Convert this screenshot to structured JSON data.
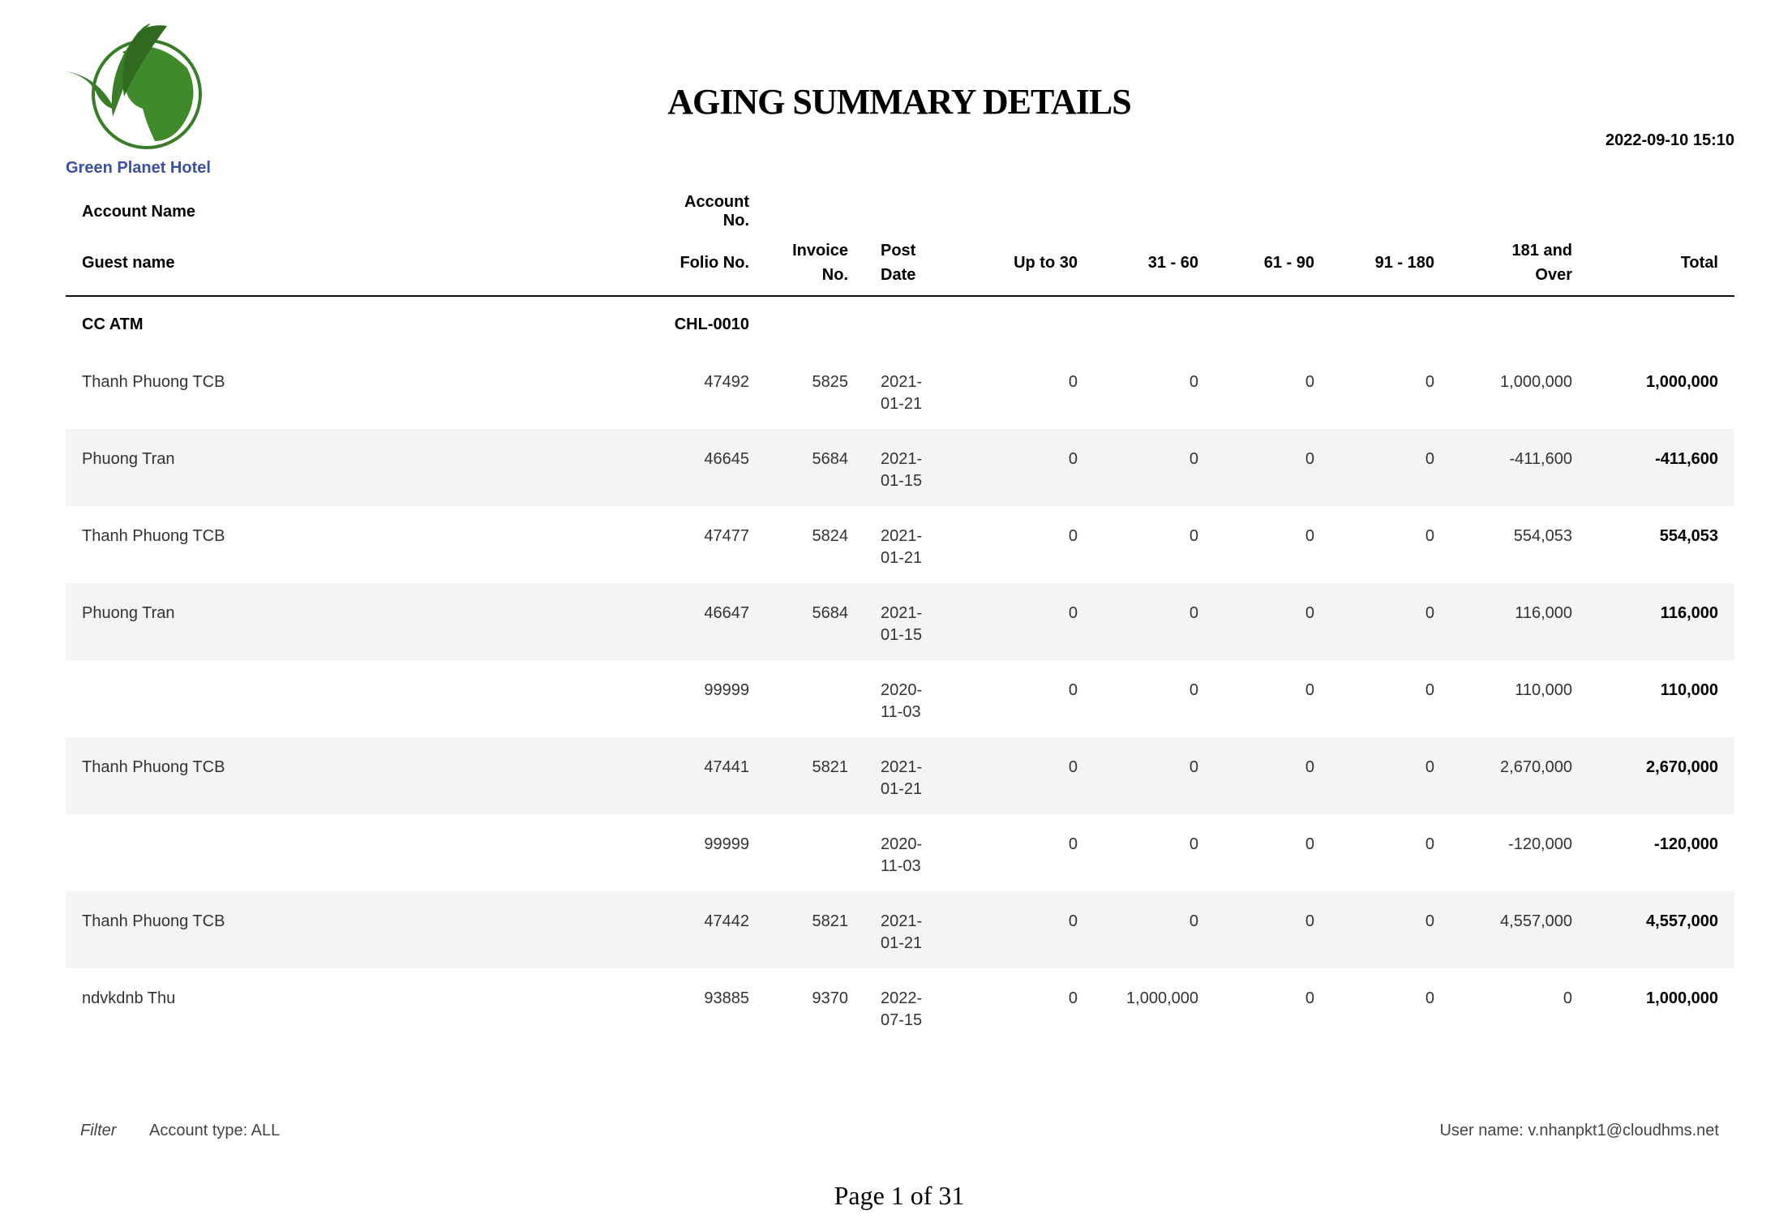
{
  "header": {
    "hotel_name": "Green Planet Hotel",
    "title": "AGING SUMMARY DETAILS",
    "printed_at": "2022-09-10 15:10",
    "brand_color": "#3d4fa0",
    "logo_color": "#3a7d28"
  },
  "columns": {
    "account_name": "Account Name",
    "account_no": "Account No.",
    "guest_name": "Guest name",
    "folio_no": "Folio No.",
    "invoice_no_1": "Invoice",
    "invoice_no_2": "No.",
    "post_date_1": "Post",
    "post_date_2": "Date",
    "up_to_30": "Up to 30",
    "d31_60": "31 - 60",
    "d61_90": "61 - 90",
    "d91_180": "91 - 180",
    "d181_1": "181 and",
    "d181_2": "Over",
    "total": "Total"
  },
  "account": {
    "name": "CC ATM",
    "number": "CHL-0010"
  },
  "rows": [
    {
      "guest": "Thanh Phuong TCB",
      "folio": "47492",
      "invoice": "5825",
      "date1": "2021-",
      "date2": "01-21",
      "b30": "0",
      "b60": "0",
      "b90": "0",
      "b180": "0",
      "over": "1,000,000",
      "total": "1,000,000"
    },
    {
      "guest": "Phuong Tran",
      "folio": "46645",
      "invoice": "5684",
      "date1": "2021-",
      "date2": "01-15",
      "b30": "0",
      "b60": "0",
      "b90": "0",
      "b180": "0",
      "over": "-411,600",
      "total": "-411,600"
    },
    {
      "guest": "Thanh Phuong TCB",
      "folio": "47477",
      "invoice": "5824",
      "date1": "2021-",
      "date2": "01-21",
      "b30": "0",
      "b60": "0",
      "b90": "0",
      "b180": "0",
      "over": "554,053",
      "total": "554,053"
    },
    {
      "guest": "Phuong Tran",
      "folio": "46647",
      "invoice": "5684",
      "date1": "2021-",
      "date2": "01-15",
      "b30": "0",
      "b60": "0",
      "b90": "0",
      "b180": "0",
      "over": "116,000",
      "total": "116,000"
    },
    {
      "guest": "",
      "folio": "99999",
      "invoice": "",
      "date1": "2020-",
      "date2": "11-03",
      "b30": "0",
      "b60": "0",
      "b90": "0",
      "b180": "0",
      "over": "110,000",
      "total": "110,000"
    },
    {
      "guest": "Thanh Phuong TCB",
      "folio": "47441",
      "invoice": "5821",
      "date1": "2021-",
      "date2": "01-21",
      "b30": "0",
      "b60": "0",
      "b90": "0",
      "b180": "0",
      "over": "2,670,000",
      "total": "2,670,000"
    },
    {
      "guest": "",
      "folio": "99999",
      "invoice": "",
      "date1": "2020-",
      "date2": "11-03",
      "b30": "0",
      "b60": "0",
      "b90": "0",
      "b180": "0",
      "over": "-120,000",
      "total": "-120,000"
    },
    {
      "guest": "Thanh Phuong TCB",
      "folio": "47442",
      "invoice": "5821",
      "date1": "2021-",
      "date2": "01-21",
      "b30": "0",
      "b60": "0",
      "b90": "0",
      "b180": "0",
      "over": "4,557,000",
      "total": "4,557,000"
    },
    {
      "guest": "ndvkdnb Thu",
      "folio": "93885",
      "invoice": "9370",
      "date1": "2022-",
      "date2": "07-15",
      "b30": "0",
      "b60": "1,000,000",
      "b90": "0",
      "b180": "0",
      "over": "0",
      "total": "1,000,000"
    }
  ],
  "footer": {
    "filter_label": "Filter",
    "filter_value": "Account type: ALL",
    "user": "User name: v.nhanpkt1@cloudhms.net",
    "page": "Page 1 of 31"
  }
}
